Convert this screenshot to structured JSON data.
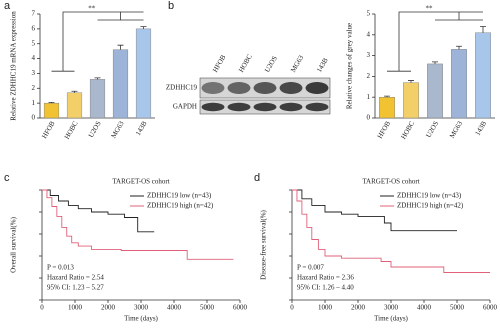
{
  "chart_data": [
    {
      "type": "bar",
      "panel_label": "a",
      "ylabel": "Relative ZDHHC19 mRNA expression",
      "categories": [
        "HFOB",
        "HOBC",
        "U2OS",
        "MG63",
        "143B"
      ],
      "values": [
        1.0,
        1.7,
        2.6,
        4.6,
        6.0
      ],
      "errors": [
        0.05,
        0.1,
        0.1,
        0.3,
        0.15
      ],
      "colors": [
        "#f1c232",
        "#f3cf6a",
        "#a9b8cc",
        "#9db4d8",
        "#a8c6ea"
      ],
      "ylim": [
        0,
        7
      ],
      "yticks": [
        0,
        1,
        2,
        3,
        4,
        5,
        6,
        7
      ],
      "annotation": "**"
    },
    {
      "type": "blot",
      "panel_label": "b",
      "categories": [
        "HFOB",
        "HOBC",
        "U2OS",
        "MG63",
        "143B"
      ],
      "rows": [
        "ZDHHC19",
        "GAPDH"
      ]
    },
    {
      "type": "bar",
      "ylabel": "Relative changes of grey value",
      "categories": [
        "HFOB",
        "HOBC",
        "U2OS",
        "MG63",
        "143B"
      ],
      "values": [
        1.0,
        1.7,
        2.6,
        3.3,
        4.1
      ],
      "errors": [
        0.05,
        0.1,
        0.1,
        0.15,
        0.3
      ],
      "colors": [
        "#f1c232",
        "#f3cf6a",
        "#a9b8cc",
        "#9db4d8",
        "#a8c6ea"
      ],
      "ylim": [
        0,
        5
      ],
      "yticks": [
        0,
        1,
        2,
        3,
        4,
        5
      ],
      "annotation": "**"
    },
    {
      "type": "km",
      "panel_label": "c",
      "title": "TARGET-OS cohort",
      "xlabel": "Time (days)",
      "ylabel": "Overall survival(%)",
      "xlim": [
        0,
        6000
      ],
      "xticks": [
        0,
        1000,
        2000,
        3000,
        4000,
        5000,
        6000
      ],
      "ylim": [
        0,
        100
      ],
      "yticks": [
        0,
        20,
        40,
        60,
        80,
        100
      ],
      "series": [
        {
          "name": "ZDHHC19 low (n=43)",
          "color": "#222222",
          "x": [
            0,
            250,
            500,
            800,
            1100,
            1500,
            2000,
            2500,
            2900,
            3400
          ],
          "values": [
            100,
            95,
            90,
            86,
            83,
            80,
            78,
            75,
            62,
            62
          ]
        },
        {
          "name": "ZDHHC19 high (n=42)",
          "color": "#e0607a",
          "x": [
            0,
            150,
            300,
            450,
            600,
            750,
            900,
            1100,
            1500,
            2400,
            4400,
            5800
          ],
          "values": [
            100,
            93,
            85,
            76,
            66,
            58,
            52,
            49,
            46,
            45,
            37,
            37
          ]
        }
      ],
      "annotations": [
        "P = 0.013",
        "Hazard Ratio = 2.54",
        "95% CI: 1.23 – 5.27"
      ]
    },
    {
      "type": "km",
      "panel_label": "d",
      "title": "TARGET-OS cohort",
      "xlabel": "Time (days)",
      "ylabel": "Disease-free survival(%)",
      "xlim": [
        0,
        6000
      ],
      "xticks": [
        0,
        1000,
        2000,
        3000,
        4000,
        5000,
        6000
      ],
      "ylim": [
        0,
        100
      ],
      "yticks": [
        0,
        20,
        40,
        60,
        80,
        100
      ],
      "series": [
        {
          "name": "ZDHHC19 low (n=43)",
          "color": "#222222",
          "x": [
            0,
            300,
            600,
            1000,
            1500,
            2000,
            2800,
            3000,
            5000
          ],
          "values": [
            100,
            92,
            86,
            80,
            78,
            76,
            70,
            63,
            63
          ]
        },
        {
          "name": "ZDHHC19 high (n=42)",
          "color": "#e0607a",
          "x": [
            0,
            150,
            300,
            450,
            600,
            800,
            1000,
            1500,
            2700,
            3000,
            4600,
            6000
          ],
          "values": [
            100,
            90,
            78,
            66,
            55,
            46,
            40,
            38,
            35,
            30,
            25,
            25
          ]
        }
      ],
      "annotations": [
        "P = 0.007",
        "Hazard Ratio = 2.36",
        "95% CI: 1.26 – 4.40"
      ]
    }
  ]
}
